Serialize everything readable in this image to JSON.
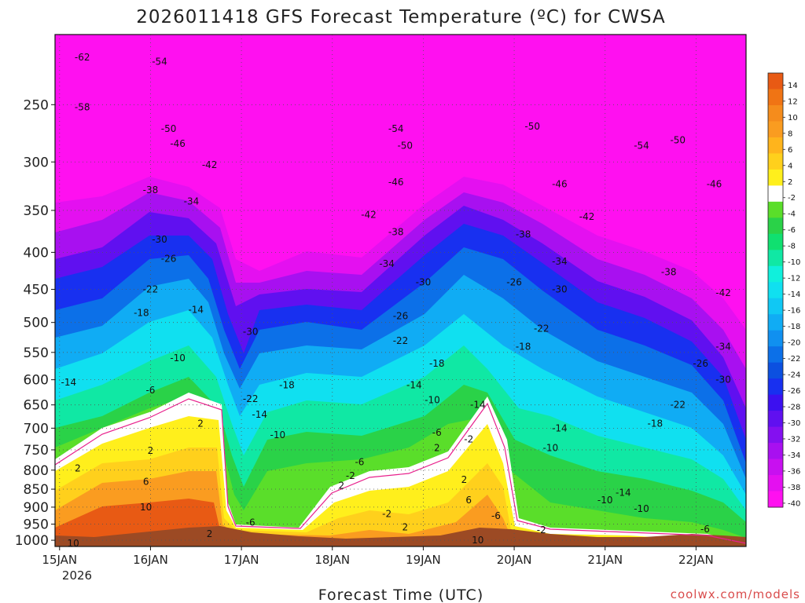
{
  "chart_data": {
    "type": "heatmap",
    "title": "2026011418 GFS Forecast Temperature (ºC) for CWSA",
    "xlabel": "Forecast Time (UTC)",
    "ylabel": "",
    "credit": "coolwx.com/models",
    "x_ticks": [
      "15JAN",
      "16JAN",
      "17JAN",
      "18JAN",
      "19JAN",
      "20JAN",
      "21JAN",
      "22JAN"
    ],
    "x_subtick": "2026",
    "xlim_days": [
      -0.05,
      7.55
    ],
    "y_ticks": [
      250,
      300,
      350,
      400,
      450,
      500,
      550,
      600,
      650,
      700,
      750,
      800,
      850,
      900,
      950,
      1000
    ],
    "ylim_hpa": [
      1020,
      200
    ],
    "colorbar_labels": [
      "14",
      "12",
      "10",
      "8",
      "6",
      "4",
      "2",
      "-2",
      "-4",
      "-6",
      "-8",
      "-10",
      "-12",
      "-14",
      "-16",
      "-18",
      "-20",
      "-22",
      "-24",
      "-26",
      "-28",
      "-30",
      "-32",
      "-34",
      "-36",
      "-38",
      "-40"
    ],
    "colorbar_colors": [
      "#e85a14",
      "#f07414",
      "#f58c1c",
      "#fa9c20",
      "#ffb41c",
      "#ffd01c",
      "#ffef1c",
      "#ffffff",
      "#5ade2a",
      "#2ad248",
      "#10e070",
      "#10e8a4",
      "#10f0dc",
      "#10e0f0",
      "#10c8f4",
      "#10acf4",
      "#1090f0",
      "#0c70e8",
      "#0c50e0",
      "#1830f0",
      "#3c10f0",
      "#6010f0",
      "#8410f0",
      "#a810f0",
      "#c810f0",
      "#e410f0",
      "#ff10f0"
    ],
    "contour_labels": [
      {
        "day": 0.25,
        "hpa": 215,
        "value": "-62"
      },
      {
        "day": 1.1,
        "hpa": 218,
        "value": "-54"
      },
      {
        "day": 0.25,
        "hpa": 252,
        "value": "-58"
      },
      {
        "day": 1.2,
        "hpa": 270,
        "value": "-50"
      },
      {
        "day": 1.3,
        "hpa": 283,
        "value": "-46"
      },
      {
        "day": 1.65,
        "hpa": 303,
        "value": "-42"
      },
      {
        "day": 1.0,
        "hpa": 328,
        "value": "-38"
      },
      {
        "day": 1.45,
        "hpa": 340,
        "value": "-34"
      },
      {
        "day": 1.1,
        "hpa": 384,
        "value": "-30"
      },
      {
        "day": 1.2,
        "hpa": 408,
        "value": "-26"
      },
      {
        "day": 1.0,
        "hpa": 450,
        "value": "-22"
      },
      {
        "day": 0.9,
        "hpa": 485,
        "value": "-18"
      },
      {
        "day": 1.5,
        "hpa": 480,
        "value": "-14"
      },
      {
        "day": 1.3,
        "hpa": 560,
        "value": "-10"
      },
      {
        "day": 0.1,
        "hpa": 605,
        "value": "-14"
      },
      {
        "day": 1.0,
        "hpa": 620,
        "value": "-6"
      },
      {
        "day": 2.1,
        "hpa": 515,
        "value": "-30"
      },
      {
        "day": 2.5,
        "hpa": 610,
        "value": "-18"
      },
      {
        "day": 2.1,
        "hpa": 638,
        "value": "-22"
      },
      {
        "day": 2.2,
        "hpa": 670,
        "value": "-14"
      },
      {
        "day": 2.4,
        "hpa": 715,
        "value": "-10"
      },
      {
        "day": 3.3,
        "hpa": 780,
        "value": "-6"
      },
      {
        "day": 2.1,
        "hpa": 945,
        "value": "-6"
      },
      {
        "day": 3.7,
        "hpa": 270,
        "value": "-54"
      },
      {
        "day": 3.8,
        "hpa": 285,
        "value": "-50"
      },
      {
        "day": 3.7,
        "hpa": 320,
        "value": "-46"
      },
      {
        "day": 3.4,
        "hpa": 355,
        "value": "-42"
      },
      {
        "day": 3.7,
        "hpa": 375,
        "value": "-38"
      },
      {
        "day": 3.6,
        "hpa": 415,
        "value": "-34"
      },
      {
        "day": 4.0,
        "hpa": 440,
        "value": "-30"
      },
      {
        "day": 3.75,
        "hpa": 490,
        "value": "-26"
      },
      {
        "day": 3.75,
        "hpa": 530,
        "value": "-22"
      },
      {
        "day": 4.15,
        "hpa": 570,
        "value": "-18"
      },
      {
        "day": 3.9,
        "hpa": 610,
        "value": "-14"
      },
      {
        "day": 4.1,
        "hpa": 640,
        "value": "-10"
      },
      {
        "day": 4.15,
        "hpa": 710,
        "value": "-6"
      },
      {
        "day": 4.5,
        "hpa": 725,
        "value": "-2"
      },
      {
        "day": 3.6,
        "hpa": 920,
        "value": "-2"
      },
      {
        "day": 3.2,
        "hpa": 815,
        "value": "-2"
      },
      {
        "day": 4.6,
        "hpa": 650,
        "value": "-14"
      },
      {
        "day": 5.2,
        "hpa": 268,
        "value": "-50"
      },
      {
        "day": 6.4,
        "hpa": 285,
        "value": "-54"
      },
      {
        "day": 6.8,
        "hpa": 280,
        "value": "-50"
      },
      {
        "day": 5.5,
        "hpa": 322,
        "value": "-46"
      },
      {
        "day": 7.2,
        "hpa": 322,
        "value": "-46"
      },
      {
        "day": 5.8,
        "hpa": 357,
        "value": "-42"
      },
      {
        "day": 5.1,
        "hpa": 378,
        "value": "-38"
      },
      {
        "day": 5.5,
        "hpa": 412,
        "value": "-34"
      },
      {
        "day": 6.7,
        "hpa": 426,
        "value": "-38"
      },
      {
        "day": 5.0,
        "hpa": 440,
        "value": "-26"
      },
      {
        "day": 5.5,
        "hpa": 450,
        "value": "-30"
      },
      {
        "day": 7.3,
        "hpa": 455,
        "value": "-42"
      },
      {
        "day": 5.3,
        "hpa": 510,
        "value": "-22"
      },
      {
        "day": 5.1,
        "hpa": 540,
        "value": "-18"
      },
      {
        "day": 7.3,
        "hpa": 540,
        "value": "-34"
      },
      {
        "day": 7.05,
        "hpa": 570,
        "value": "-26"
      },
      {
        "day": 7.3,
        "hpa": 600,
        "value": "-30"
      },
      {
        "day": 6.8,
        "hpa": 650,
        "value": "-22"
      },
      {
        "day": 5.5,
        "hpa": 700,
        "value": "-14"
      },
      {
        "day": 6.55,
        "hpa": 690,
        "value": "-18"
      },
      {
        "day": 5.4,
        "hpa": 745,
        "value": "-10"
      },
      {
        "day": 6.2,
        "hpa": 860,
        "value": "-14"
      },
      {
        "day": 6.0,
        "hpa": 880,
        "value": "-10"
      },
      {
        "day": 6.4,
        "hpa": 905,
        "value": "-10"
      },
      {
        "day": 4.8,
        "hpa": 925,
        "value": "-6"
      },
      {
        "day": 7.1,
        "hpa": 965,
        "value": "-6"
      },
      {
        "day": 5.3,
        "hpa": 968,
        "value": "-2"
      },
      {
        "day": 0.2,
        "hpa": 795,
        "value": "2"
      },
      {
        "day": 1.0,
        "hpa": 752,
        "value": "2"
      },
      {
        "day": 1.55,
        "hpa": 690,
        "value": "2"
      },
      {
        "day": 0.95,
        "hpa": 830,
        "value": "6"
      },
      {
        "day": 0.95,
        "hpa": 900,
        "value": "10"
      },
      {
        "day": 0.15,
        "hpa": 1010,
        "value": "10"
      },
      {
        "day": 1.65,
        "hpa": 980,
        "value": "2"
      },
      {
        "day": 3.1,
        "hpa": 840,
        "value": "2"
      },
      {
        "day": 4.15,
        "hpa": 745,
        "value": "2"
      },
      {
        "day": 4.45,
        "hpa": 825,
        "value": "2"
      },
      {
        "day": 4.5,
        "hpa": 880,
        "value": "6"
      },
      {
        "day": 4.6,
        "hpa": 1000,
        "value": "10"
      },
      {
        "day": 3.8,
        "hpa": 960,
        "value": "2"
      }
    ]
  }
}
